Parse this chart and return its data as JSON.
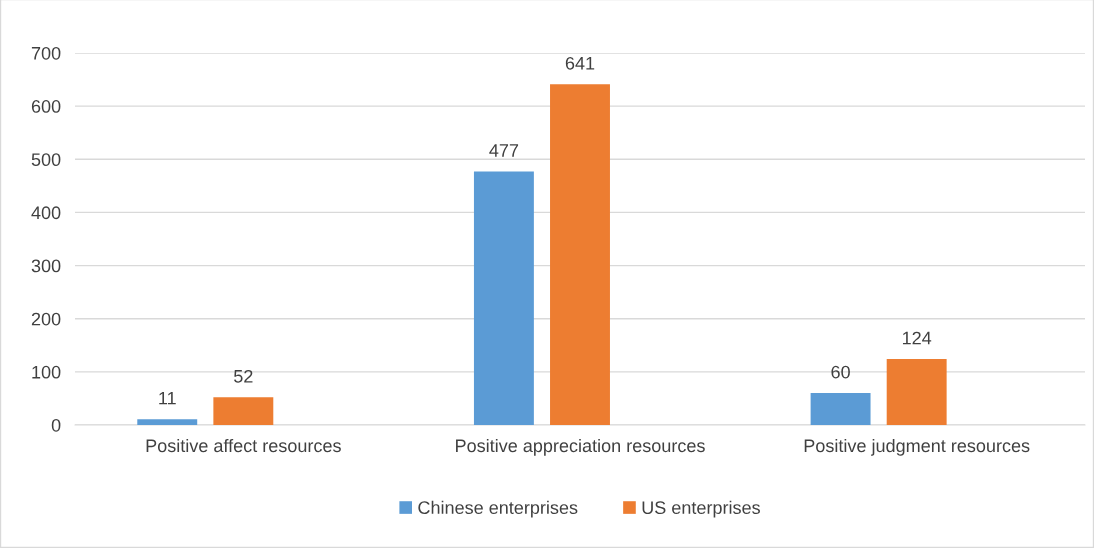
{
  "chart_data": {
    "type": "bar",
    "categories": [
      "Positive affect resources",
      "Positive appreciation resources",
      "Positive judgment resources"
    ],
    "series": [
      {
        "name": "Chinese enterprises",
        "color": "#5b9bd5",
        "values": [
          11,
          477,
          60
        ]
      },
      {
        "name": "US enterprises",
        "color": "#ed7d31",
        "values": [
          52,
          641,
          124
        ]
      }
    ],
    "ylim": [
      0,
      700
    ],
    "yticks": [
      0,
      100,
      200,
      300,
      400,
      500,
      600,
      700
    ],
    "grid": "y",
    "legend": "bottom",
    "data_labels": true
  }
}
